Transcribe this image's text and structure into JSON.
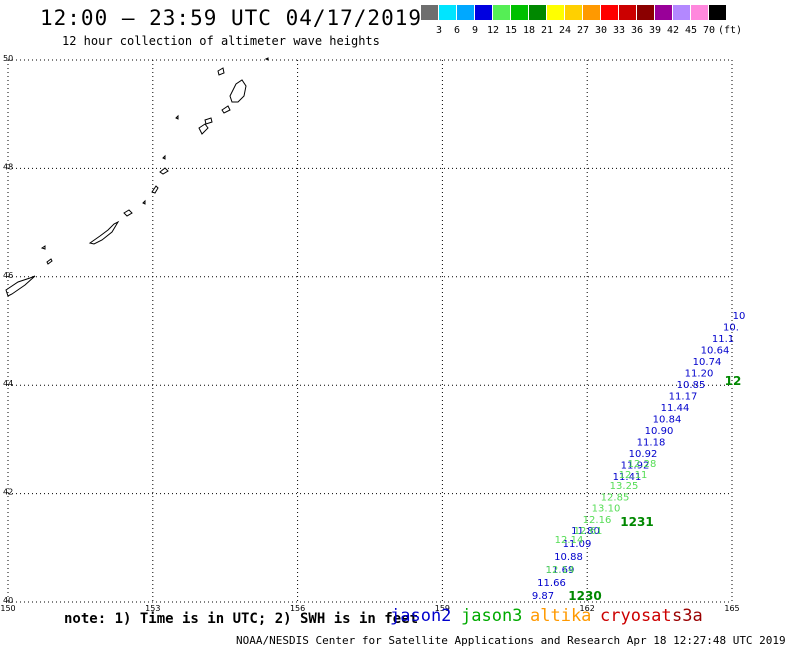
{
  "header": {
    "title": "12:00 – 23:59 UTC 04/17/2019",
    "subtitle": "12 hour collection of altimeter wave heights"
  },
  "legend": {
    "unit": "(ft)",
    "bins": [
      {
        "label": "",
        "color": "#6e6e6e"
      },
      {
        "label": "3",
        "color": "#00e5ff"
      },
      {
        "label": "6",
        "color": "#00a8ff"
      },
      {
        "label": "9",
        "color": "#0000e0"
      },
      {
        "label": "12",
        "color": "#55ee55"
      },
      {
        "label": "15",
        "color": "#00c000"
      },
      {
        "label": "18",
        "color": "#008800"
      },
      {
        "label": "21",
        "color": "#ffff00"
      },
      {
        "label": "24",
        "color": "#ffd000"
      },
      {
        "label": "27",
        "color": "#ff9900"
      },
      {
        "label": "30",
        "color": "#ff0000"
      },
      {
        "label": "33",
        "color": "#cc0000"
      },
      {
        "label": "36",
        "color": "#8b0000"
      },
      {
        "label": "39",
        "color": "#990099"
      },
      {
        "label": "42",
        "color": "#b388ff"
      },
      {
        "label": "45",
        "color": "#ff88dd"
      },
      {
        "label": "70",
        "color": "#000000"
      }
    ]
  },
  "axes": {
    "lon_ticks": [
      "150",
      "153",
      "156",
      "159",
      "162",
      "165"
    ],
    "lat_ticks": [
      "50",
      "48",
      "46",
      "44",
      "42",
      "40"
    ],
    "lon_range": [
      150,
      165
    ],
    "lat_range": [
      40,
      50
    ]
  },
  "observations": {
    "jason2": {
      "color": "#0000cc",
      "values": [
        "9.87",
        "11.66",
        "11.69",
        "10.88",
        "11.09",
        "11.80",
        "11.41",
        "11.92",
        "10.92",
        "11.18",
        "10.90",
        "10.84",
        "11.44",
        "11.17",
        "10.85",
        "11.20",
        "10.74",
        "10.64",
        "11.1",
        "10.",
        "10"
      ]
    },
    "jason3": {
      "color": "#55dd55",
      "values": [
        "12.14",
        "12.14",
        "12.61",
        "12.16",
        "13.10",
        "12.85",
        "13.25",
        "12.11",
        "12.28"
      ]
    },
    "time_labels": [
      {
        "text": "1230",
        "color": "#008800"
      },
      {
        "text": "1231",
        "color": "#008800"
      },
      {
        "text": "12",
        "color": "#008800"
      }
    ]
  },
  "note": "note: 1) Time is in UTC; 2) SWH is in feet",
  "satellites": [
    {
      "name": "jason2",
      "color": "#0000cc"
    },
    {
      "name": "jason3",
      "color": "#00aa00"
    },
    {
      "name": "altika",
      "color": "#ff9900"
    },
    {
      "name": "cryosat",
      "color": "#cc0000"
    },
    {
      "name": "s3a",
      "color": "#990000"
    }
  ],
  "footer": "NOAA/NESDIS Center for Satellite Applications and Research   Apr 18 12:27:48 UTC 2019"
}
